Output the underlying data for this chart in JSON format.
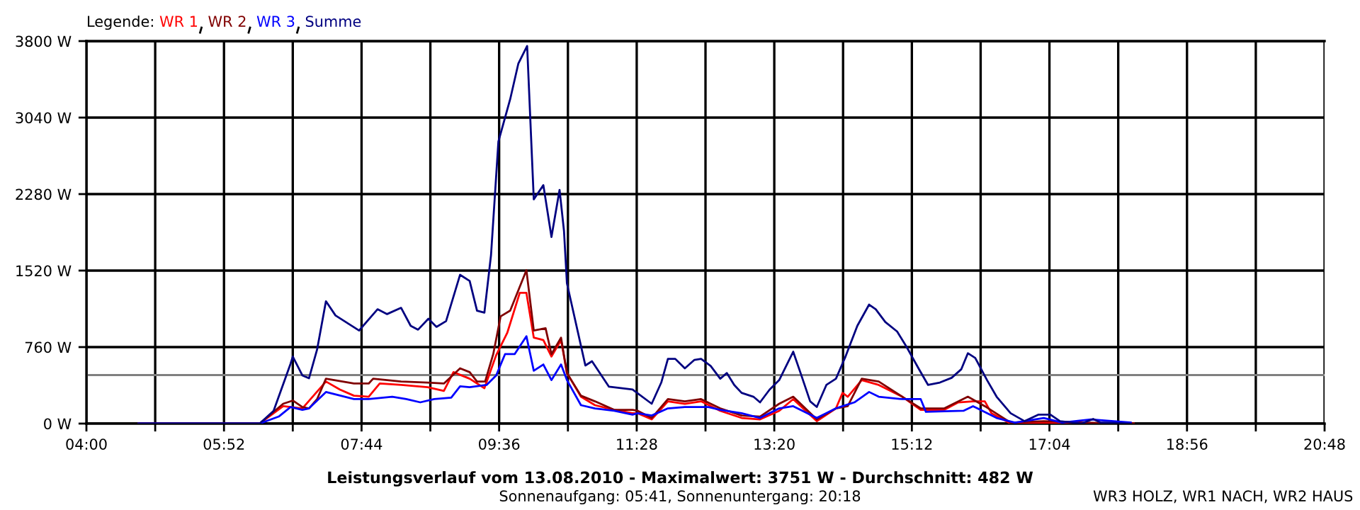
{
  "chart_data": {
    "type": "line",
    "title": "Leistungsverlauf vom 13.08.2010 - Maximalwert: 3751 W - Durchschnitt: 482 W",
    "subtitle": "Sonnenaufgang: 05:41, Sonnenuntergang: 20:18",
    "annotations": [
      "WR3 HOLZ, WR1 NACH, WR2 HAUS"
    ],
    "legend_title": "Legende:",
    "legend": "top left",
    "series": [
      {
        "name": "WR 1",
        "color": "#ff0000",
        "x": [
          4.71,
          6.35,
          6.67,
          6.93,
          7.25,
          7.44,
          7.63,
          7.83,
          7.98,
          8.27,
          8.63,
          8.85,
          8.98,
          9.2,
          9.4,
          9.56,
          9.71,
          9.88,
          9.97,
          10.07,
          10.2,
          10.31,
          10.44,
          10.52,
          10.71,
          10.9,
          11.16,
          11.41,
          11.48,
          11.67,
          11.89,
          12.12,
          12.34,
          12.6,
          12.89,
          13.14,
          13.4,
          13.59,
          13.91,
          14.17,
          14.26,
          14.33,
          14.52,
          14.75,
          15.07,
          15.32,
          15.64,
          15.83,
          16.03,
          16.19,
          16.28,
          16.54,
          16.99,
          17.24,
          18.21
        ],
        "values": [
          0,
          0,
          173,
          151,
          418,
          338,
          277,
          267,
          398,
          384,
          362,
          324,
          511,
          446,
          352,
          680,
          901,
          1299,
          1299,
          854,
          830,
          666,
          830,
          502,
          267,
          183,
          137,
          103,
          103,
          42,
          221,
          197,
          221,
          127,
          56,
          42,
          127,
          243,
          24,
          151,
          305,
          267,
          432,
          384,
          267,
          137,
          137,
          211,
          221,
          221,
          103,
          0,
          10,
          0,
          0
        ]
      },
      {
        "name": "WR 2",
        "color": "#800000",
        "x": [
          4.71,
          6.35,
          6.67,
          6.8,
          6.93,
          7.02,
          7.13,
          7.25,
          7.63,
          7.83,
          7.89,
          8.27,
          8.63,
          8.85,
          9.07,
          9.2,
          9.3,
          9.41,
          9.52,
          9.62,
          9.75,
          9.97,
          10.07,
          10.23,
          10.31,
          10.44,
          10.52,
          10.71,
          10.9,
          11.16,
          11.41,
          11.48,
          11.67,
          11.89,
          12.12,
          12.34,
          12.6,
          12.89,
          13.14,
          13.4,
          13.59,
          13.91,
          14.17,
          14.33,
          14.52,
          14.75,
          15.07,
          15.32,
          15.64,
          15.96,
          16.19,
          16.54,
          16.99,
          17.56,
          18.21
        ],
        "values": [
          0,
          0,
          197,
          229,
          165,
          151,
          243,
          446,
          398,
          398,
          446,
          418,
          408,
          398,
          549,
          511,
          418,
          418,
          690,
          1065,
          1122,
          1524,
          925,
          947,
          690,
          854,
          502,
          277,
          221,
          137,
          137,
          127,
          56,
          243,
          221,
          243,
          151,
          80,
          70,
          197,
          267,
          42,
          151,
          173,
          446,
          418,
          267,
          151,
          151,
          267,
          173,
          10,
          24,
          10,
          0
        ]
      },
      {
        "name": "WR 3",
        "color": "#0000ff",
        "x": [
          4.71,
          6.35,
          6.61,
          6.77,
          6.93,
          7.02,
          7.25,
          7.63,
          7.83,
          8.15,
          8.34,
          8.53,
          8.72,
          8.95,
          9.07,
          9.2,
          9.43,
          9.56,
          9.68,
          9.81,
          9.97,
          10.07,
          10.2,
          10.31,
          10.44,
          10.52,
          10.71,
          10.9,
          11.16,
          11.41,
          11.48,
          11.67,
          11.89,
          12.12,
          12.44,
          12.6,
          12.89,
          13.14,
          13.4,
          13.59,
          13.91,
          14.17,
          14.26,
          14.42,
          14.62,
          14.75,
          15.07,
          15.32,
          15.39,
          15.9,
          16.03,
          16.09,
          16.35,
          16.6,
          16.99,
          17.24,
          17.63,
          18.17
        ],
        "values": [
          0,
          0,
          70,
          165,
          137,
          151,
          314,
          243,
          243,
          267,
          243,
          211,
          243,
          258,
          370,
          362,
          384,
          479,
          690,
          690,
          868,
          525,
          587,
          432,
          587,
          432,
          183,
          151,
          127,
          89,
          103,
          80,
          151,
          165,
          165,
          137,
          103,
          56,
          151,
          173,
          56,
          151,
          173,
          211,
          314,
          267,
          243,
          243,
          117,
          127,
          173,
          151,
          56,
          10,
          56,
          10,
          42,
          10
        ]
      },
      {
        "name": "Summe",
        "color": "#000080",
        "x": [
          4.71,
          6.35,
          6.54,
          6.77,
          6.8,
          6.93,
          7.02,
          7.13,
          7.25,
          7.38,
          7.7,
          7.95,
          8.08,
          8.27,
          8.4,
          8.5,
          8.64,
          8.75,
          8.88,
          9.07,
          9.2,
          9.3,
          9.4,
          9.49,
          9.59,
          9.75,
          9.86,
          9.98,
          10.07,
          10.2,
          10.31,
          10.42,
          10.48,
          10.52,
          10.77,
          10.86,
          11.09,
          11.41,
          11.67,
          11.8,
          11.89,
          11.99,
          12.12,
          12.25,
          12.34,
          12.47,
          12.6,
          12.69,
          12.79,
          12.89,
          13.05,
          13.14,
          13.27,
          13.4,
          13.59,
          13.69,
          13.82,
          13.91,
          14.04,
          14.17,
          14.3,
          14.46,
          14.62,
          14.71,
          14.84,
          15.0,
          15.13,
          15.29,
          15.42,
          15.58,
          15.74,
          15.87,
          15.96,
          16.06,
          16.22,
          16.35,
          16.54,
          16.73,
          16.92,
          17.08,
          17.21,
          17.5,
          17.66,
          17.76,
          17.88,
          18.17
        ],
        "values": [
          0,
          0,
          127,
          595,
          666,
          479,
          450,
          736,
          1215,
          1074,
          925,
          1136,
          1088,
          1150,
          971,
          933,
          1041,
          961,
          1018,
          1478,
          1417,
          1122,
          1102,
          1675,
          2801,
          3223,
          3575,
          3751,
          2228,
          2369,
          1854,
          2322,
          1914,
          1393,
          577,
          619,
          366,
          338,
          197,
          408,
          643,
          643,
          549,
          633,
          643,
          573,
          446,
          502,
          384,
          305,
          267,
          211,
          338,
          432,
          714,
          502,
          221,
          165,
          384,
          446,
          666,
          971,
          1182,
          1136,
          1009,
          915,
          760,
          549,
          384,
          408,
          455,
          539,
          699,
          652,
          432,
          267,
          103,
          24,
          89,
          89,
          24,
          0,
          46,
          10,
          10,
          0
        ]
      }
    ],
    "ref_lines": [
      {
        "axis": "y",
        "value": 482,
        "label": null,
        "color": "#808080"
      }
    ],
    "xlim": [
      4,
      20.8
    ],
    "xticks": [
      {
        "value": 4,
        "label": "04:00"
      },
      {
        "value": 4.9333,
        "label": null
      },
      {
        "value": 5.8667,
        "label": "05:52"
      },
      {
        "value": 6.8,
        "label": null
      },
      {
        "value": 7.7333,
        "label": "07:44"
      },
      {
        "value": 8.6667,
        "label": null
      },
      {
        "value": 9.6,
        "label": "09:36"
      },
      {
        "value": 10.5333,
        "label": null
      },
      {
        "value": 11.4667,
        "label": "11:28"
      },
      {
        "value": 12.4,
        "label": null
      },
      {
        "value": 13.3333,
        "label": "13:20"
      },
      {
        "value": 14.2667,
        "label": null
      },
      {
        "value": 15.2,
        "label": "15:12"
      },
      {
        "value": 16.1333,
        "label": null
      },
      {
        "value": 17.0667,
        "label": "17:04"
      },
      {
        "value": 18.0,
        "label": null
      },
      {
        "value": 18.9333,
        "label": "18:56"
      },
      {
        "value": 19.8667,
        "label": null
      },
      {
        "value": 20.8,
        "label": "20:48"
      }
    ],
    "ylim": [
      0,
      3800
    ],
    "yticks": [
      {
        "value": 0,
        "label": "0 W"
      },
      {
        "value": 760,
        "label": "760 W"
      },
      {
        "value": 1520,
        "label": "1520 W"
      },
      {
        "value": 2280,
        "label": "2280 W"
      },
      {
        "value": 3040,
        "label": "3040 W"
      },
      {
        "value": 3800,
        "label": "3800 W"
      }
    ],
    "grid": true,
    "marker": "none",
    "line_style": "solid"
  }
}
